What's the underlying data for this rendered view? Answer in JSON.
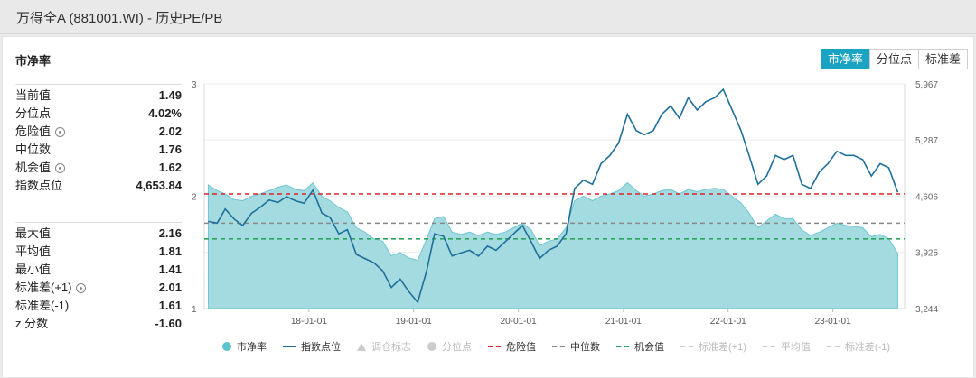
{
  "window": {
    "title": "万得全A (881001.WI) - 历史PE/PB"
  },
  "panel": {
    "title": "市净率",
    "tabs": [
      {
        "label": "市净率",
        "active": true
      },
      {
        "label": "分位点",
        "active": false
      },
      {
        "label": "标准差",
        "active": false
      }
    ]
  },
  "stats_current": [
    {
      "label": "当前值",
      "value": "1.49",
      "gear": false
    },
    {
      "label": "分位点",
      "value": "4.02%",
      "gear": false
    },
    {
      "label": "危险值",
      "value": "2.02",
      "gear": true
    },
    {
      "label": "中位数",
      "value": "1.76",
      "gear": false
    },
    {
      "label": "机会值",
      "value": "1.62",
      "gear": true
    },
    {
      "label": "指数点位",
      "value": "4,653.84",
      "gear": false
    }
  ],
  "stats_history": [
    {
      "label": "最大值",
      "value": "2.16",
      "gear": false
    },
    {
      "label": "平均值",
      "value": "1.81",
      "gear": false
    },
    {
      "label": "最小值",
      "value": "1.41",
      "gear": false
    },
    {
      "label": "标准差(+1)",
      "value": "2.01",
      "gear": true
    },
    {
      "label": "标准差(-1)",
      "value": "1.61",
      "gear": false
    },
    {
      "label": "z 分数",
      "value": "-1.60",
      "gear": false
    }
  ],
  "legend": [
    {
      "label": "市净率",
      "marker": "circle",
      "color": "#5cc3cf",
      "active": true
    },
    {
      "label": "指数点位",
      "marker": "line",
      "color": "#1f6f9a",
      "active": true
    },
    {
      "label": "调仓标志",
      "marker": "triangle",
      "color": "#cccccc",
      "active": false
    },
    {
      "label": "分位点",
      "marker": "circle",
      "color": "#cccccc",
      "active": false
    },
    {
      "label": "危险值",
      "marker": "dash",
      "color": "#d6252b",
      "active": true
    },
    {
      "label": "中位数",
      "marker": "dash",
      "color": "#888888",
      "active": true
    },
    {
      "label": "机会值",
      "marker": "dash",
      "color": "#2aa35c",
      "active": true
    },
    {
      "label": "标准差(+1)",
      "marker": "dash",
      "color": "#cccccc",
      "active": false
    },
    {
      "label": "平均值",
      "marker": "dash",
      "color": "#cccccc",
      "active": false
    },
    {
      "label": "标准差(-1)",
      "marker": "dash",
      "color": "#cccccc",
      "active": false
    }
  ],
  "chart_data": {
    "type": "area",
    "x_ticks": [
      "18-01-01",
      "19-01-01",
      "20-01-01",
      "21-01-01",
      "22-01-01",
      "23-01-01"
    ],
    "x_range": [
      "2017-01-01",
      "2023-09-08"
    ],
    "y_left": {
      "label": "市净率",
      "ticks": [
        "3",
        "2",
        "1"
      ],
      "min": 1,
      "max": 3
    },
    "y_right": {
      "label": "指数点位",
      "ticks": [
        "5,967",
        "5,287",
        "4,606",
        "3,925",
        "3,244"
      ],
      "min": 3244,
      "max": 5967
    },
    "reference_lines": [
      {
        "name": "危险值",
        "value": 2.02,
        "color": "#d6252b"
      },
      {
        "name": "中位数",
        "value": 1.76,
        "color": "#888888"
      },
      {
        "name": "机会值",
        "value": 1.62,
        "color": "#2aa35c"
      }
    ],
    "series": [
      {
        "name": "市净率",
        "axis": "left",
        "color": "#5cc3cf",
        "x": [
          "2017-01",
          "2017-02",
          "2017-03",
          "2017-04",
          "2017-05",
          "2017-06",
          "2017-07",
          "2017-08",
          "2017-09",
          "2017-10",
          "2017-11",
          "2017-12",
          "2018-01",
          "2018-02",
          "2018-03",
          "2018-04",
          "2018-05",
          "2018-06",
          "2018-07",
          "2018-08",
          "2018-09",
          "2018-10",
          "2018-11",
          "2018-12",
          "2019-01",
          "2019-02",
          "2019-03",
          "2019-04",
          "2019-05",
          "2019-06",
          "2019-07",
          "2019-08",
          "2019-09",
          "2019-10",
          "2019-11",
          "2019-12",
          "2020-01",
          "2020-02",
          "2020-03",
          "2020-04",
          "2020-05",
          "2020-06",
          "2020-07",
          "2020-08",
          "2020-09",
          "2020-10",
          "2020-11",
          "2020-12",
          "2021-01",
          "2021-02",
          "2021-03",
          "2021-04",
          "2021-05",
          "2021-06",
          "2021-07",
          "2021-08",
          "2021-09",
          "2021-10",
          "2021-11",
          "2021-12",
          "2022-01",
          "2022-02",
          "2022-03",
          "2022-04",
          "2022-05",
          "2022-06",
          "2022-07",
          "2022-08",
          "2022-09",
          "2022-10",
          "2022-11",
          "2022-12",
          "2023-01",
          "2023-02",
          "2023-03",
          "2023-04",
          "2023-05",
          "2023-06",
          "2023-07",
          "2023-08"
        ],
        "values": [
          2.1,
          2.05,
          2.02,
          1.97,
          1.96,
          2.0,
          2.02,
          2.05,
          2.08,
          2.1,
          2.06,
          2.05,
          2.12,
          2.0,
          1.96,
          1.9,
          1.86,
          1.72,
          1.68,
          1.62,
          1.6,
          1.47,
          1.5,
          1.45,
          1.43,
          1.62,
          1.8,
          1.82,
          1.68,
          1.66,
          1.68,
          1.65,
          1.68,
          1.66,
          1.68,
          1.72,
          1.76,
          1.7,
          1.56,
          1.6,
          1.62,
          1.72,
          1.96,
          2.0,
          1.96,
          2.0,
          2.02,
          2.05,
          2.12,
          2.05,
          2.0,
          2.02,
          2.05,
          2.06,
          2.02,
          2.06,
          2.04,
          2.06,
          2.07,
          2.06,
          2.0,
          1.94,
          1.85,
          1.72,
          1.78,
          1.84,
          1.8,
          1.8,
          1.7,
          1.65,
          1.68,
          1.72,
          1.76,
          1.74,
          1.73,
          1.72,
          1.64,
          1.66,
          1.62,
          1.49
        ]
      },
      {
        "name": "指数点位",
        "axis": "right",
        "color": "#1f6f9a",
        "x": [
          "2017-01",
          "2017-02",
          "2017-03",
          "2017-04",
          "2017-05",
          "2017-06",
          "2017-07",
          "2017-08",
          "2017-09",
          "2017-10",
          "2017-11",
          "2017-12",
          "2018-01",
          "2018-02",
          "2018-03",
          "2018-04",
          "2018-05",
          "2018-06",
          "2018-07",
          "2018-08",
          "2018-09",
          "2018-10",
          "2018-11",
          "2018-12",
          "2019-01",
          "2019-02",
          "2019-03",
          "2019-04",
          "2019-05",
          "2019-06",
          "2019-07",
          "2019-08",
          "2019-09",
          "2019-10",
          "2019-11",
          "2019-12",
          "2020-01",
          "2020-02",
          "2020-03",
          "2020-04",
          "2020-05",
          "2020-06",
          "2020-07",
          "2020-08",
          "2020-09",
          "2020-10",
          "2020-11",
          "2020-12",
          "2021-01",
          "2021-02",
          "2021-03",
          "2021-04",
          "2021-05",
          "2021-06",
          "2021-07",
          "2021-08",
          "2021-09",
          "2021-10",
          "2021-11",
          "2021-12",
          "2022-01",
          "2022-02",
          "2022-03",
          "2022-04",
          "2022-05",
          "2022-06",
          "2022-07",
          "2022-08",
          "2022-09",
          "2022-10",
          "2022-11",
          "2022-12",
          "2023-01",
          "2023-02",
          "2023-03",
          "2023-04",
          "2023-05",
          "2023-06",
          "2023-07",
          "2023-08"
        ],
        "values": [
          4300,
          4280,
          4450,
          4330,
          4250,
          4400,
          4470,
          4560,
          4530,
          4600,
          4550,
          4520,
          4680,
          4400,
          4350,
          4150,
          4200,
          3900,
          3850,
          3800,
          3700,
          3500,
          3600,
          3450,
          3320,
          3700,
          4150,
          4120,
          3880,
          3920,
          3950,
          3880,
          4000,
          3950,
          4050,
          4150,
          4250,
          4050,
          3850,
          3950,
          4000,
          4150,
          4700,
          4800,
          4750,
          5000,
          5100,
          5250,
          5600,
          5400,
          5350,
          5400,
          5600,
          5700,
          5550,
          5800,
          5650,
          5750,
          5800,
          5900,
          5650,
          5400,
          5100,
          4750,
          4850,
          5100,
          5050,
          5100,
          4750,
          4700,
          4900,
          5000,
          5150,
          5100,
          5100,
          5050,
          4850,
          5000,
          4950,
          4653
        ]
      }
    ]
  }
}
